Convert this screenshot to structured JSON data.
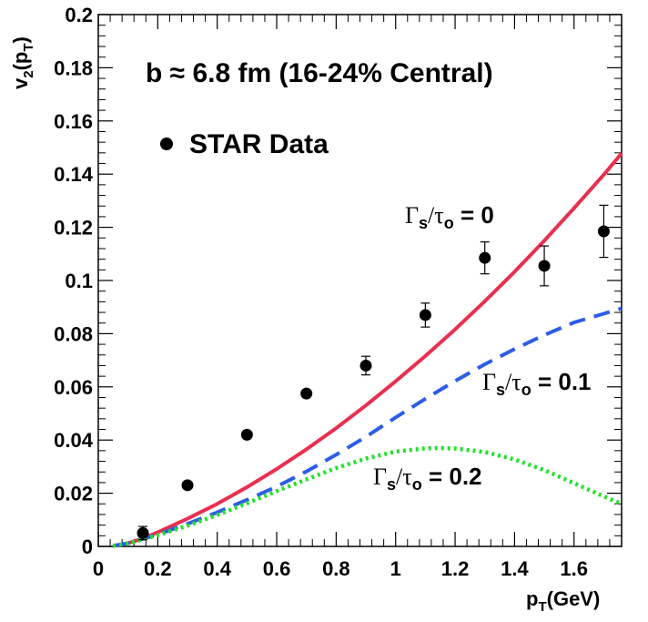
{
  "chart_data": {
    "type": "line",
    "title": "b ≈ 6.8 fm (16-24% Central)",
    "xlabel": {
      "main": "p",
      "sub": "T",
      "unit": "(GeV)"
    },
    "ylabel": {
      "main": "v",
      "sub": "2",
      "open": "(p",
      "sub2": "T",
      "close": ")"
    },
    "xlim": [
      0,
      1.76
    ],
    "ylim": [
      0,
      0.2
    ],
    "x_ticks": [
      0,
      0.2,
      0.4,
      0.6,
      0.8,
      1,
      1.2,
      1.4,
      1.6
    ],
    "x_tick_labels": [
      "0",
      "0.2",
      "0.4",
      "0.6",
      "0.8",
      "1",
      "1.2",
      "1.4",
      "1.6"
    ],
    "y_ticks": [
      0,
      0.02,
      0.04,
      0.06,
      0.08,
      0.1,
      0.12,
      0.14,
      0.16,
      0.18,
      0.2
    ],
    "y_tick_labels": [
      "0",
      "0.02",
      "0.04",
      "0.06",
      "0.08",
      "0.1",
      "0.12",
      "0.14",
      "0.16",
      "0.18",
      "0.2"
    ],
    "legend": {
      "marker": "filled-circle",
      "label": "STAR Data",
      "position": "top-left"
    },
    "data_points": {
      "name": "STAR Data",
      "x": [
        0.15,
        0.3,
        0.5,
        0.7,
        0.9,
        1.1,
        1.3,
        1.5,
        1.7
      ],
      "y": [
        0.005,
        0.023,
        0.042,
        0.0575,
        0.068,
        0.087,
        0.1085,
        0.1055,
        0.1185
      ],
      "err": [
        0.0025,
        0.0005,
        0.0005,
        0.0005,
        0.0035,
        0.0045,
        0.006,
        0.0075,
        0.0098
      ]
    },
    "series": [
      {
        "name": "Γs/τo = 0",
        "color": "#e8304e",
        "style": "solid",
        "x": [
          0.05,
          0.1,
          0.15,
          0.2,
          0.3,
          0.4,
          0.5,
          0.6,
          0.7,
          0.8,
          0.9,
          1.0,
          1.1,
          1.2,
          1.3,
          1.4,
          1.5,
          1.6,
          1.7,
          1.76
        ],
        "y": [
          0.0002,
          0.0012,
          0.003,
          0.0053,
          0.0104,
          0.016,
          0.0223,
          0.0291,
          0.0365,
          0.0445,
          0.053,
          0.0621,
          0.0716,
          0.0816,
          0.0922,
          0.1033,
          0.115,
          0.1272,
          0.1398,
          0.1478
        ]
      },
      {
        "name": "Γs/τo = 0.1",
        "color": "#2d5de6",
        "style": "dashed",
        "x": [
          0.05,
          0.1,
          0.2,
          0.3,
          0.4,
          0.5,
          0.6,
          0.7,
          0.8,
          0.9,
          1.0,
          1.1,
          1.2,
          1.3,
          1.4,
          1.5,
          1.6,
          1.7,
          1.76
        ],
        "y": [
          0.0002,
          0.0012,
          0.0045,
          0.0085,
          0.0128,
          0.0175,
          0.0225,
          0.0282,
          0.0345,
          0.0412,
          0.0485,
          0.0555,
          0.0622,
          0.0685,
          0.0742,
          0.0795,
          0.0842,
          0.0875,
          0.0895
        ]
      },
      {
        "name": "Γs/τo = 0.2",
        "color": "#22e02a",
        "style": "dotted",
        "x": [
          0.05,
          0.1,
          0.2,
          0.3,
          0.4,
          0.5,
          0.6,
          0.7,
          0.8,
          0.9,
          1.0,
          1.1,
          1.15,
          1.2,
          1.3,
          1.4,
          1.5,
          1.6,
          1.7,
          1.76
        ],
        "y": [
          0.0002,
          0.0012,
          0.0042,
          0.0078,
          0.0118,
          0.0162,
          0.0208,
          0.0252,
          0.0295,
          0.033,
          0.0357,
          0.0369,
          0.037,
          0.0368,
          0.0355,
          0.0327,
          0.0287,
          0.0238,
          0.0188,
          0.016
        ]
      }
    ],
    "annotations": [
      {
        "label_id": "g0",
        "greek1": "Γ",
        "sub1": "s",
        "slash": "/",
        "greek2": "τ",
        "sub2": "o",
        "value": " = 0"
      },
      {
        "label_id": "g1",
        "greek1": "Γ",
        "sub1": "s",
        "slash": "/",
        "greek2": "τ",
        "sub2": "o",
        "value": " = 0.1"
      },
      {
        "label_id": "g2",
        "greek1": "Γ",
        "sub1": "s",
        "slash": "/",
        "greek2": "τ",
        "sub2": "o",
        "value": " = 0.2"
      }
    ]
  }
}
